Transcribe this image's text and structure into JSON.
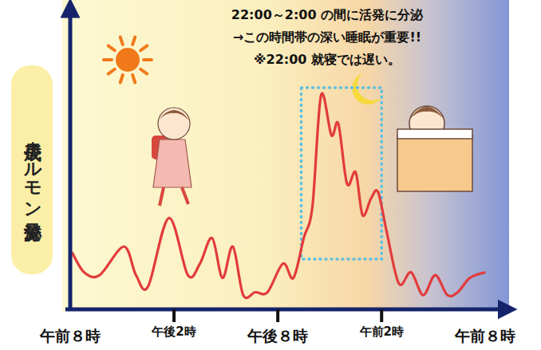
{
  "chart_data": {
    "type": "line",
    "y_label": "成長ホルモン分泌量",
    "annotations": [
      "22:00～2:00 の間に活発に分泌",
      "→この時間帯の深い睡眠が重要!!",
      "※22:00 就寝では遅い。"
    ],
    "highlight": [
      14,
      18
    ],
    "x": [
      0.1,
      0.8,
      1.7,
      3.1,
      3.8,
      4.5,
      5.7,
      6.8,
      7.5,
      8.2,
      8.8,
      9.4,
      10,
      10.7,
      11.4,
      12.3,
      12.9,
      13.5,
      14,
      14.5,
      15.1,
      15.5,
      16,
      16.5,
      16.9,
      17.4,
      17.8,
      18.3,
      19,
      19.7,
      20.4,
      21.1,
      21.8,
      22.4,
      23.1,
      24
    ],
    "values": [
      20,
      13,
      12,
      22,
      12,
      8,
      32,
      12,
      16,
      25,
      11,
      22,
      5,
      6,
      6,
      16,
      11,
      25,
      36,
      75,
      61,
      65,
      44,
      48,
      33,
      39,
      41,
      27,
      9,
      13,
      5,
      12,
      5,
      6,
      11,
      13
    ],
    "color": "#e23b3b",
    "xlim": [
      0,
      25
    ],
    "xticks": [
      {
        "value": 0,
        "label": "午前８時"
      },
      {
        "value": 6,
        "label": "午後2時"
      },
      {
        "value": 12,
        "label": "午後８時"
      },
      {
        "value": 18,
        "label": "午前2時"
      },
      {
        "value": 24,
        "label": "午前８時"
      }
    ],
    "ylim": [
      0,
      100
    ],
    "tick_labels": "x",
    "grid": false
  }
}
